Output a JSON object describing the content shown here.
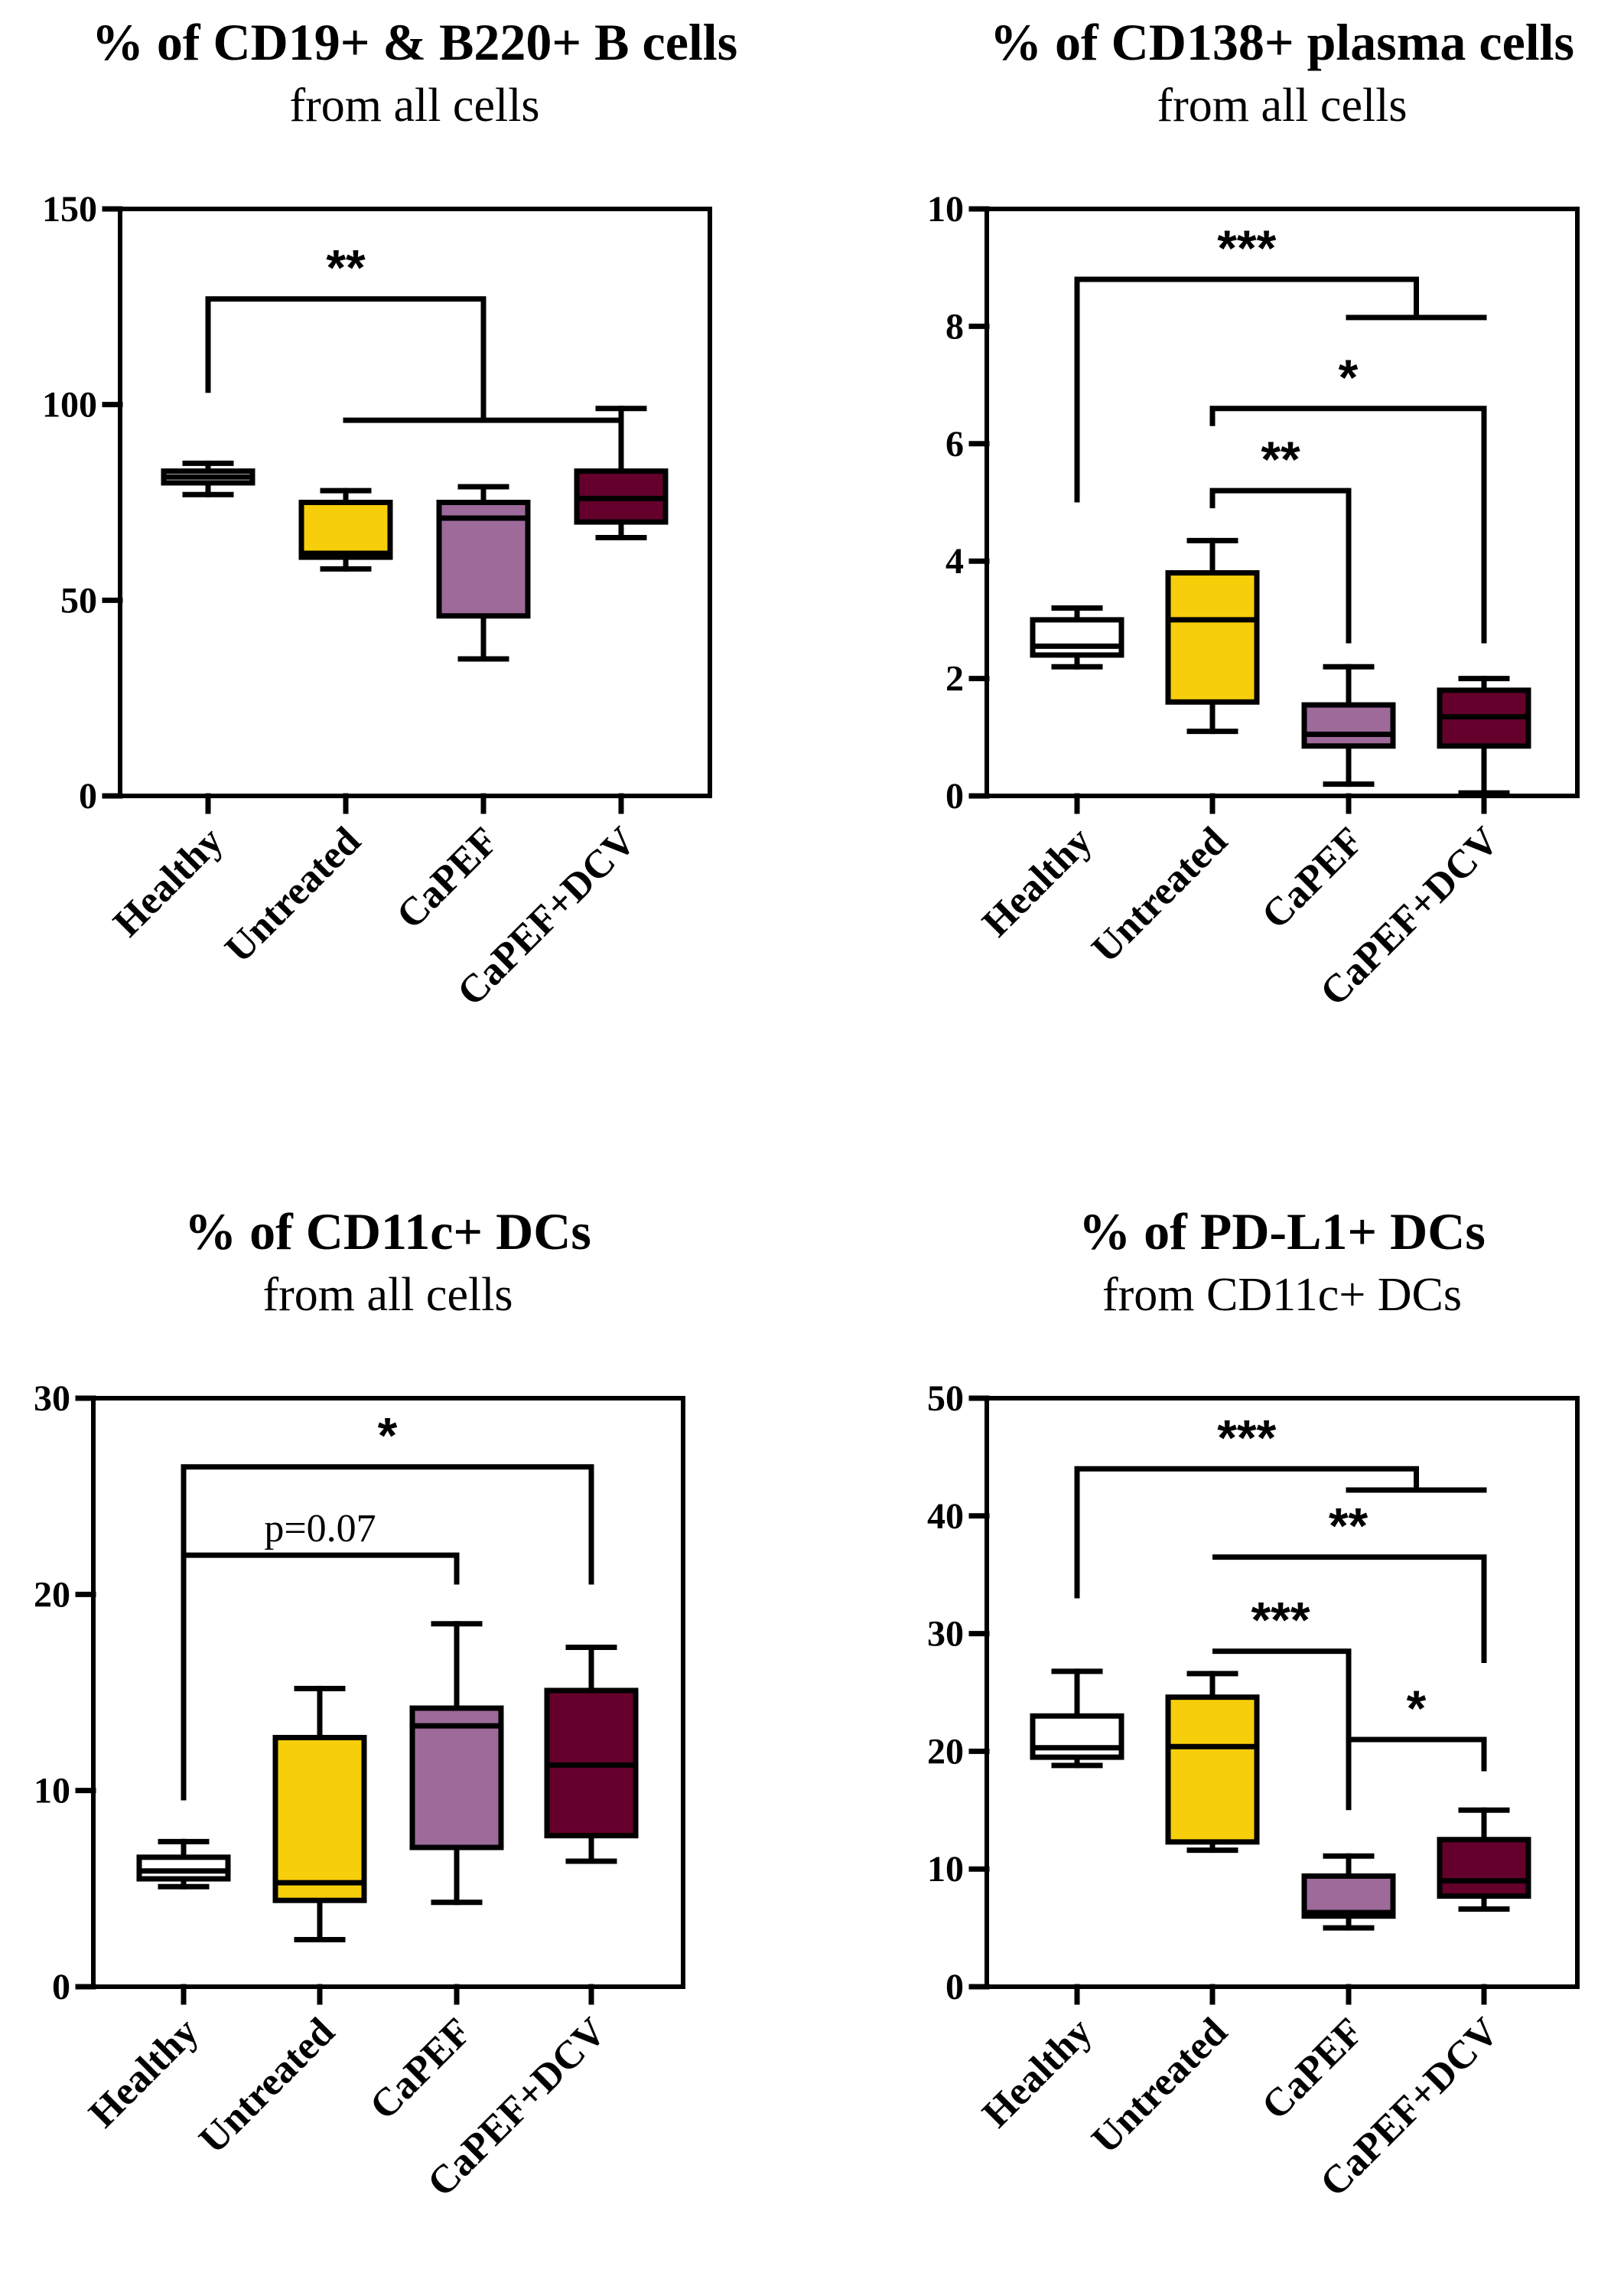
{
  "colors": {
    "Healthy": "#ffffff",
    "Untreated": "#f7ce0a",
    "CaPEF": "#9d6a9a",
    "CaPEF+DCV": "#65002c",
    "axis": "#000000"
  },
  "chart_data": [
    {
      "type": "box",
      "title": "% of CD19+ & B220+ B cells",
      "subtitle": "from all cells",
      "categories": [
        "Healthy",
        "Untreated",
        "CaPEF",
        "CaPEF+DCV"
      ],
      "ylim": [
        0,
        150
      ],
      "yticks": [
        "0",
        "50",
        "100",
        "150"
      ],
      "boxes": [
        {
          "min": 77,
          "q1": 80,
          "median": 81.5,
          "q3": 83,
          "max": 85
        },
        {
          "min": 58,
          "q1": 61,
          "median": 62,
          "q3": 75,
          "max": 78
        },
        {
          "min": 35,
          "q1": 46,
          "median": 71,
          "q3": 75,
          "max": 79
        },
        {
          "min": 66,
          "q1": 70,
          "median": 76,
          "q3": 83,
          "max": 99
        }
      ],
      "brackets": [
        {
          "type": "group",
          "from": 0,
          "to": [
            1,
            3
          ],
          "y": 127,
          "yb": 96,
          "label": "**",
          "drop": 103
        }
      ]
    },
    {
      "type": "box",
      "title": "% of CD138+ plasma cells",
      "subtitle": "from all cells",
      "categories": [
        "Healthy",
        "Untreated",
        "CaPEF",
        "CaPEF+DCV"
      ],
      "ylim": [
        0,
        10
      ],
      "yticks": [
        "0",
        "2",
        "4",
        "6",
        "8",
        "10"
      ],
      "boxes": [
        {
          "min": 2.2,
          "q1": 2.4,
          "median": 2.55,
          "q3": 3.0,
          "max": 3.2
        },
        {
          "min": 1.1,
          "q1": 1.6,
          "median": 3.0,
          "q3": 3.8,
          "max": 4.35
        },
        {
          "min": 0.2,
          "q1": 0.85,
          "median": 1.05,
          "q3": 1.55,
          "max": 2.2
        },
        {
          "min": 0.05,
          "q1": 0.85,
          "median": 1.35,
          "q3": 1.8,
          "max": 2.0
        }
      ],
      "brackets": [
        {
          "type": "group",
          "from": 0,
          "to": [
            2,
            3
          ],
          "y": 8.8,
          "yb": 8.15,
          "label": "***",
          "drop": 5.0
        },
        {
          "type": "pair",
          "a": 1,
          "b": 3,
          "y": 6.6,
          "ya": 6.3,
          "yb": 2.6,
          "label": "*"
        },
        {
          "type": "pair",
          "a": 1,
          "b": 2,
          "y": 5.2,
          "ya": 4.9,
          "yb": 2.6,
          "label": "**"
        }
      ]
    },
    {
      "type": "box",
      "title": "% of CD11c+ DCs",
      "subtitle": "from all cells",
      "categories": [
        "Healthy",
        "Untreated",
        "CaPEF",
        "CaPEF+DCV"
      ],
      "ylim": [
        0,
        30
      ],
      "yticks": [
        "0",
        "10",
        "20",
        "30"
      ],
      "boxes": [
        {
          "min": 5.1,
          "q1": 5.5,
          "median": 5.9,
          "q3": 6.6,
          "max": 7.4
        },
        {
          "min": 2.4,
          "q1": 4.4,
          "median": 5.3,
          "q3": 12.7,
          "max": 15.2
        },
        {
          "min": 4.3,
          "q1": 7.1,
          "median": 13.3,
          "q3": 14.2,
          "max": 18.5
        },
        {
          "min": 6.4,
          "q1": 7.7,
          "median": 11.3,
          "q3": 15.1,
          "max": 17.3
        }
      ],
      "brackets": [
        {
          "type": "pair",
          "a": 0,
          "b": 3,
          "y": 26.5,
          "ya": 9.5,
          "yb": 20.5,
          "label": "*"
        },
        {
          "type": "pair",
          "a": 0,
          "b": 2,
          "y": 22.0,
          "ya": 9.5,
          "yb": 20.5,
          "label": "p=0.07",
          "plain": true
        }
      ]
    },
    {
      "type": "box",
      "title": "% of PD-L1+ DCs",
      "subtitle": "from CD11c+ DCs",
      "categories": [
        "Healthy",
        "Untreated",
        "CaPEF",
        "CaPEF+DCV"
      ],
      "ylim": [
        0,
        50
      ],
      "yticks": [
        "0",
        "10",
        "20",
        "30",
        "40",
        "50"
      ],
      "boxes": [
        {
          "min": 18.8,
          "q1": 19.5,
          "median": 20.3,
          "q3": 23.0,
          "max": 26.8
        },
        {
          "min": 11.6,
          "q1": 12.3,
          "median": 20.4,
          "q3": 24.6,
          "max": 26.6
        },
        {
          "min": 5.0,
          "q1": 6.0,
          "median": 6.3,
          "q3": 9.4,
          "max": 11.1
        },
        {
          "min": 6.6,
          "q1": 7.7,
          "median": 9.0,
          "q3": 12.5,
          "max": 15.0
        }
      ],
      "brackets": [
        {
          "type": "group",
          "from": 0,
          "to": [
            2,
            3
          ],
          "y": 44.0,
          "yb": 42.2,
          "label": "***",
          "drop": 33.0
        },
        {
          "type": "pair",
          "a": 1,
          "b": 3,
          "y": 36.5,
          "ya": 36.5,
          "yb": 27.5,
          "label": "**"
        },
        {
          "type": "pair",
          "a": 1,
          "b": 2,
          "y": 28.5,
          "ya": 28.5,
          "yb": 15.0,
          "label": "***"
        },
        {
          "type": "pair",
          "a": 2,
          "b": 3,
          "y": 21.0,
          "ya": 21.0,
          "yb": 18.3,
          "label": "*"
        }
      ]
    }
  ]
}
